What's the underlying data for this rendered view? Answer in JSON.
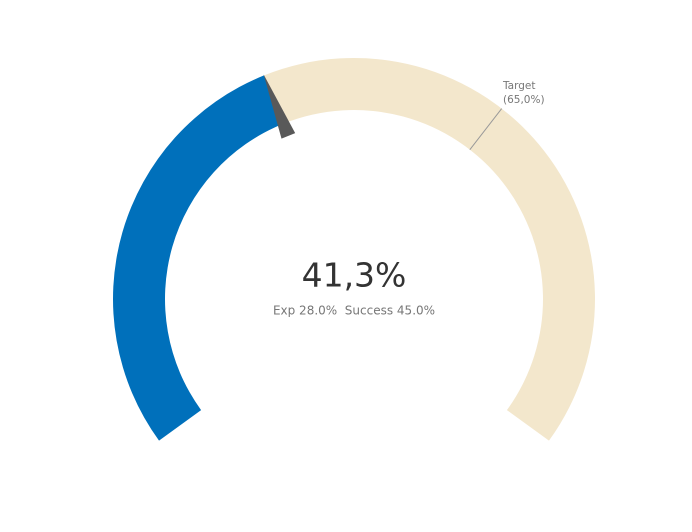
{
  "chart_data": {
    "type": "gauge",
    "value": 41.3,
    "value_label": "41,3%",
    "subtitle": "Exp 28.0%  Success 45.0%",
    "ylim": [
      0,
      100
    ],
    "target": {
      "name": "Target",
      "value": 65,
      "label": "(65,0%)"
    },
    "color": "#0070bb",
    "track_color": "#f3e7cc",
    "needle_color": "#595959",
    "target_color": "#999999"
  }
}
